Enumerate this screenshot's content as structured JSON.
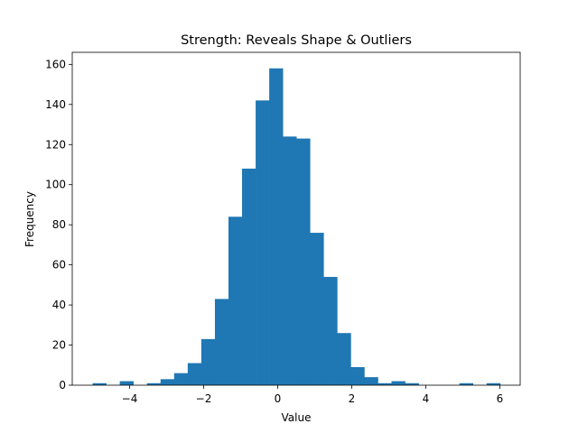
{
  "chart_data": {
    "type": "bar",
    "title": "Strength: Reveals Shape & Outliers",
    "xlabel": "Value",
    "ylabel": "Frequency",
    "bin_start": -5.0,
    "bin_width": 0.367,
    "values": [
      1,
      0,
      2,
      0,
      1,
      3,
      6,
      11,
      23,
      43,
      84,
      108,
      142,
      158,
      124,
      123,
      76,
      54,
      26,
      9,
      4,
      1,
      2,
      1,
      0,
      0,
      0,
      1,
      0,
      1
    ],
    "xlim": [
      -5.55,
      6.55
    ],
    "ylim": [
      0,
      166
    ],
    "xticks": [
      -4,
      -2,
      0,
      2,
      4,
      6
    ],
    "xtick_labels": [
      "−4",
      "−2",
      "0",
      "2",
      "4",
      "6"
    ],
    "yticks": [
      0,
      20,
      40,
      60,
      80,
      100,
      120,
      140,
      160
    ],
    "ytick_labels": [
      "0",
      "20",
      "40",
      "60",
      "80",
      "100",
      "120",
      "140",
      "160"
    ],
    "bar_color": "#1f77b4",
    "grid": false,
    "legend": "none"
  }
}
